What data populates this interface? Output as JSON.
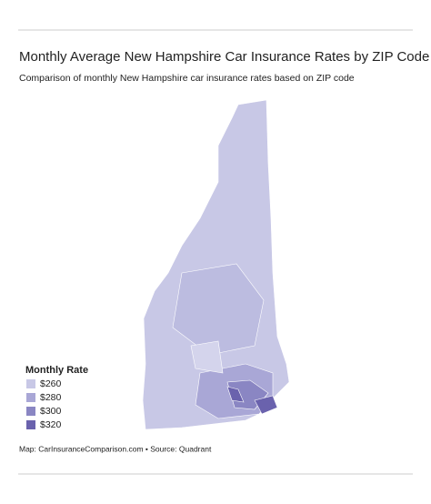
{
  "header": {
    "title": "Monthly Average New Hampshire Car Insurance Rates by ZIP Code",
    "subtitle": "Comparison of monthly New Hampshire car insurance rates based on ZIP code"
  },
  "legend": {
    "title": "Monthly Rate",
    "items": [
      {
        "value": 260,
        "label": "$260",
        "color": "#c8c8e6"
      },
      {
        "value": 280,
        "label": "$280",
        "color": "#a9a7d6"
      },
      {
        "value": 300,
        "label": "$300",
        "color": "#8a86c3"
      },
      {
        "value": 320,
        "label": "$320",
        "color": "#6a62ad"
      }
    ]
  },
  "footer": {
    "source": "Map: CarInsuranceComparison.com • Source: Quadrant"
  }
}
